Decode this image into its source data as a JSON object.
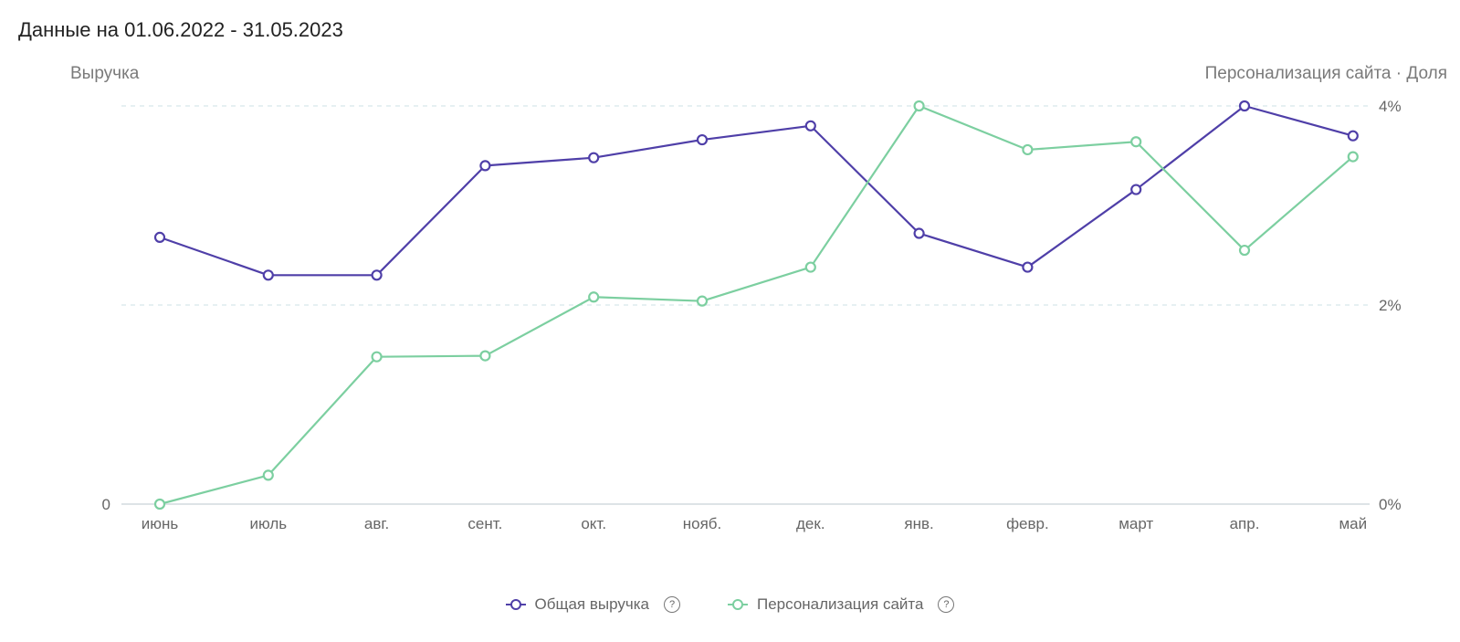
{
  "header": {
    "title": "Данные на 01.06.2022 - 31.05.2023"
  },
  "colors": {
    "revenue": "#4f3fa8",
    "personalization": "#7ccfa0",
    "grid": "#d6e6ea",
    "baseline": "#dde3e6"
  },
  "legend": {
    "items": [
      {
        "label": "Общая выручка",
        "color": "#4f3fa8",
        "icon": "help-icon"
      },
      {
        "label": "Персонализация сайта",
        "color": "#7ccfa0",
        "icon": "help-icon"
      }
    ]
  },
  "chart_data": {
    "type": "line",
    "title": "",
    "categories": [
      "июнь",
      "июль",
      "авг.",
      "сент.",
      "окт.",
      "нояб.",
      "дек.",
      "янв.",
      "февр.",
      "март",
      "апр.",
      "май"
    ],
    "left_axis": {
      "label": "Выручка",
      "ticks": [
        "0"
      ],
      "ylim": [
        0,
        100
      ]
    },
    "right_axis": {
      "label": "Персонализация сайта · Доля",
      "ticks": [
        "0%",
        "2%",
        "4%"
      ],
      "ylim": [
        0,
        4
      ]
    },
    "series": [
      {
        "name": "Общая выручка",
        "axis": "left",
        "values": [
          67,
          57.5,
          57.5,
          85,
          87,
          91.5,
          95,
          68,
          59.5,
          79,
          100,
          92.5
        ]
      },
      {
        "name": "Персонализация сайта",
        "axis": "right",
        "values": [
          0,
          0.29,
          1.48,
          1.49,
          2.08,
          2.04,
          2.38,
          4.0,
          3.56,
          3.64,
          2.55,
          3.49
        ]
      }
    ],
    "grid": true,
    "legend_position": "bottom"
  }
}
